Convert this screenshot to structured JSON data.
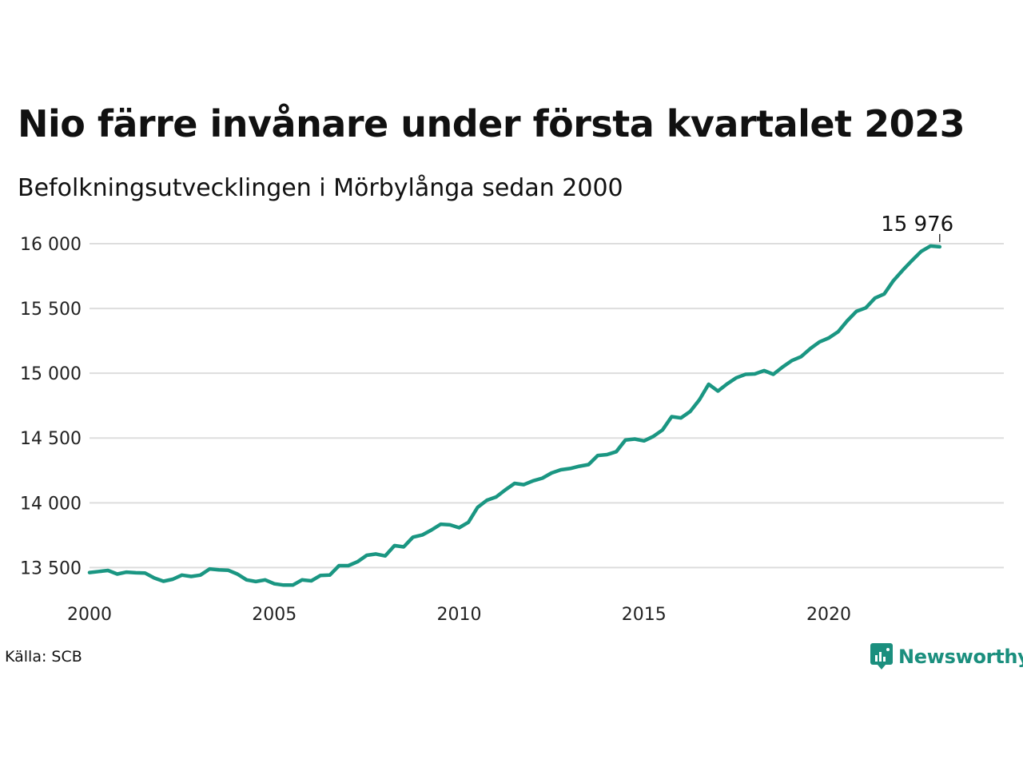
{
  "title": "Nio färre invånare under första kvartalet 2023",
  "subtitle": "Befolkningsutvecklingen i Mörbylånga sedan 2000",
  "source": "Källa: SCB",
  "brand": "Newsworthy",
  "colors": {
    "line": "#1a9682",
    "grid": "#dddddd",
    "brand": "#1b8f7e"
  },
  "chart_data": {
    "type": "line",
    "title": "Nio färre invånare under första kvartalet 2023",
    "subtitle": "Befolkningsutvecklingen i Mörbylånga sedan 2000",
    "xlabel": "",
    "ylabel": "",
    "grid": true,
    "legend": "none",
    "x_ticks": [
      2000,
      2005,
      2010,
      2015,
      2020
    ],
    "x_tick_labels": [
      "2000",
      "2005",
      "2010",
      "2015",
      "2020"
    ],
    "y_ticks": [
      13500,
      14000,
      14500,
      15000,
      15500,
      16000
    ],
    "y_tick_labels": [
      "13 500",
      "14 000",
      "14 500",
      "15 000",
      "15 500",
      "16 000"
    ],
    "xlim": [
      2000,
      2024
    ],
    "ylim": [
      13330,
      16080
    ],
    "annotation": {
      "label": "15 976",
      "x": 2023.0,
      "y": 15976
    },
    "series": [
      {
        "x": [
          2000.0,
          2000.25,
          2000.5,
          2000.75,
          2001.0,
          2001.25,
          2001.5,
          2001.75,
          2002.0,
          2002.25,
          2002.5,
          2002.75,
          2003.0,
          2003.25,
          2003.5,
          2003.75,
          2004.0,
          2004.25,
          2004.5,
          2004.75,
          2005.0,
          2005.25,
          2005.5,
          2005.75,
          2006.0,
          2006.25,
          2006.5,
          2006.75,
          2007.0,
          2007.25,
          2007.5,
          2007.75,
          2008.0,
          2008.25,
          2008.5,
          2008.75,
          2009.0,
          2009.25,
          2009.5,
          2009.75,
          2010.0,
          2010.25,
          2010.5,
          2010.75,
          2011.0,
          2011.25,
          2011.5,
          2011.75,
          2012.0,
          2012.25,
          2012.5,
          2012.75,
          2013.0,
          2013.25,
          2013.5,
          2013.75,
          2014.0,
          2014.25,
          2014.5,
          2014.75,
          2015.0,
          2015.25,
          2015.5,
          2015.75,
          2016.0,
          2016.25,
          2016.5,
          2016.75,
          2017.0,
          2017.25,
          2017.5,
          2017.75,
          2018.0,
          2018.25,
          2018.5,
          2018.75,
          2019.0,
          2019.25,
          2019.5,
          2019.75,
          2020.0,
          2020.25,
          2020.5,
          2020.75,
          2021.0,
          2021.25,
          2021.5,
          2021.75,
          2022.0,
          2022.25,
          2022.5,
          2022.75,
          2023.0
        ],
        "y": [
          13462,
          13470,
          13478,
          13450,
          13465,
          13460,
          13458,
          13420,
          13395,
          13410,
          13442,
          13432,
          13442,
          13490,
          13482,
          13480,
          13450,
          13405,
          13392,
          13405,
          13375,
          13365,
          13365,
          13405,
          13398,
          13440,
          13442,
          13515,
          13515,
          13545,
          13595,
          13605,
          13590,
          13670,
          13660,
          13735,
          13752,
          13790,
          13835,
          13830,
          13808,
          13850,
          13965,
          14020,
          14045,
          14100,
          14150,
          14140,
          14170,
          14190,
          14230,
          14255,
          14265,
          14282,
          14295,
          14365,
          14372,
          14395,
          14485,
          14492,
          14478,
          14512,
          14562,
          14665,
          14655,
          14705,
          14795,
          14915,
          14862,
          14918,
          14965,
          14992,
          14995,
          15020,
          14992,
          15048,
          15098,
          15128,
          15190,
          15242,
          15272,
          15320,
          15405,
          15478,
          15505,
          15580,
          15612,
          15715,
          15795,
          15870,
          15940,
          15982,
          15976
        ]
      }
    ]
  }
}
